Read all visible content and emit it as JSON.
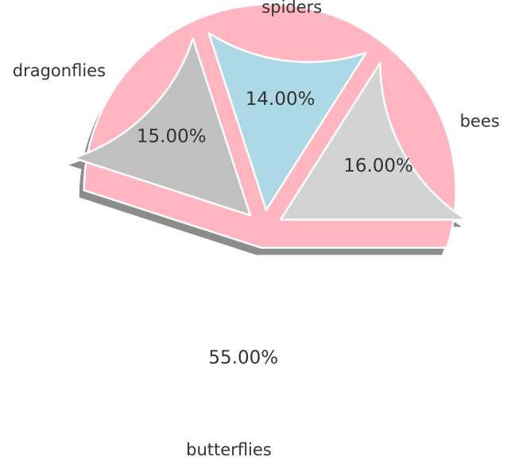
{
  "chart_data": {
    "type": "pie",
    "title": "",
    "categories": [
      "butterflies",
      "dragonflies",
      "spiders",
      "bees"
    ],
    "values": [
      55,
      15,
      14,
      16
    ],
    "percent_labels": [
      "55.00%",
      "15.00%",
      "14.00%",
      "16.00%"
    ],
    "colors": [
      "#ffb6c1",
      "#c0c0c0",
      "#add8e6",
      "#d3d3d3"
    ],
    "shadow_color": "#8c8c8c",
    "edge_color": "#ffffff",
    "exploded": true,
    "shadow": true,
    "legend": "none",
    "start_angle": 0,
    "direction": "counterclockwise"
  }
}
